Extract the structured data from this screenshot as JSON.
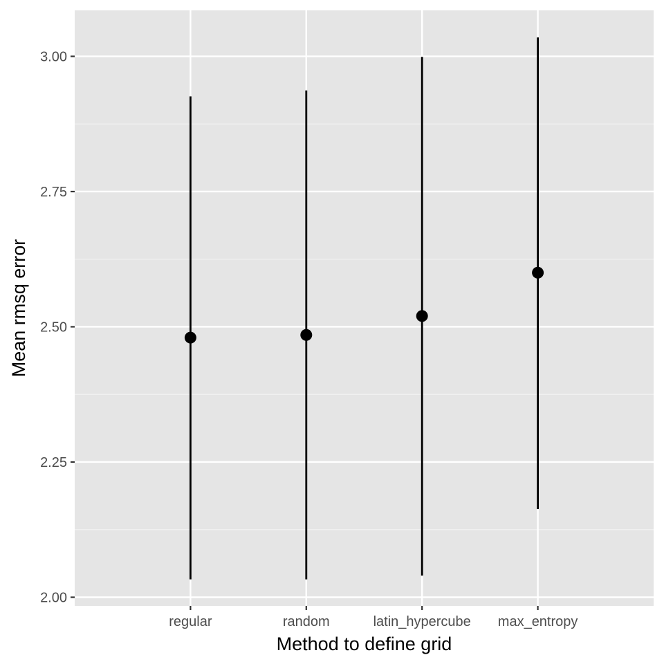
{
  "chart_data": {
    "type": "scatter",
    "subtype": "pointrange",
    "title": "",
    "xlabel": "Method to define grid",
    "ylabel": "Mean rmsq error",
    "categories": [
      "regular",
      "random",
      "latin_hypercube",
      "max_entropy"
    ],
    "series": [
      {
        "values": [
          2.48,
          2.485,
          2.52,
          2.6
        ],
        "lower": [
          2.033,
          2.033,
          2.04,
          2.163
        ],
        "upper": [
          2.926,
          2.937,
          2.999,
          3.035
        ]
      }
    ],
    "yticks": [
      "2.00",
      "2.25",
      "2.50",
      "2.75",
      "3.00"
    ],
    "ylim": [
      1.984,
      3.085
    ],
    "grid": true,
    "legend": "none",
    "colors": {
      "panel_background": "#e5e5e5",
      "grid_major": "#ffffff",
      "grid_minor": "#f2f2f2",
      "point": "#000000",
      "tick_label": "#4d4d4d",
      "tick_mark": "#333333"
    }
  }
}
